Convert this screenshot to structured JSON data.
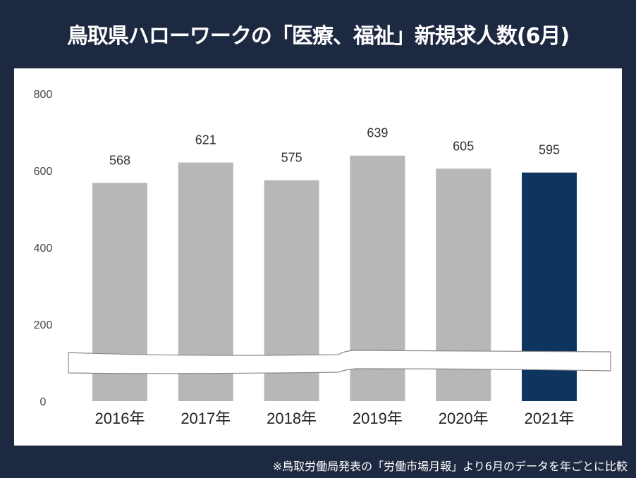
{
  "title": "鳥取県ハローワークの「医療、福祉」新規求人数(6月)",
  "footnote": "※鳥取労働局発表の「労働市場月報」より6月のデータを年ごとに比較",
  "chart_data": {
    "type": "bar",
    "categories": [
      "2016年",
      "2017年",
      "2018年",
      "2019年",
      "2020年",
      "2021年"
    ],
    "values": [
      568,
      621,
      575,
      639,
      605,
      595
    ],
    "data_labels": [
      "568",
      "621",
      "575",
      "639",
      "605",
      "595"
    ],
    "ylim": [
      0,
      800
    ],
    "yticks": [
      "0",
      "200",
      "400",
      "600",
      "800"
    ],
    "grid": false,
    "axis_break": true,
    "colors": {
      "default": "#b7b7b7",
      "highlight": "#0d3560",
      "background": "#1d2841"
    },
    "highlight_index": 5
  }
}
